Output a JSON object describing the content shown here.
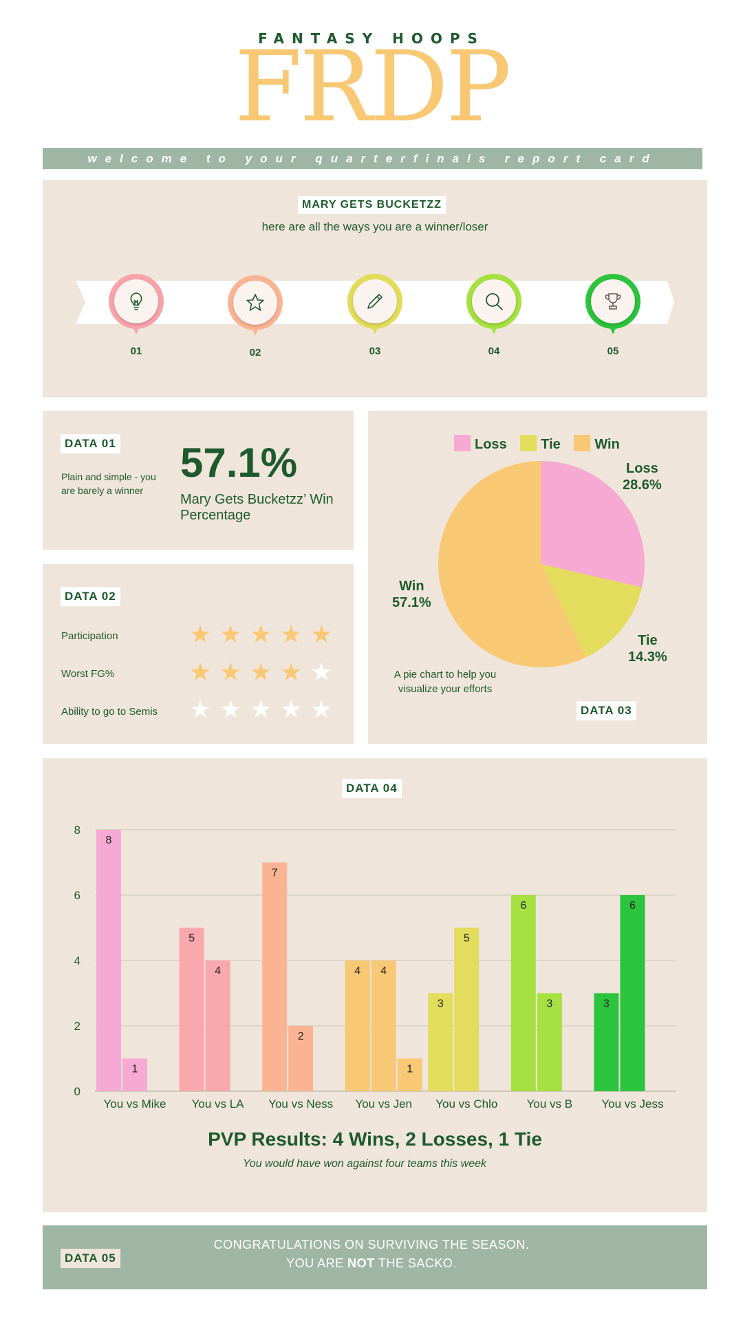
{
  "header": {
    "subtitle": "FANTASY HOOPS",
    "logo": "FRDP",
    "welcome": "welcome to your quarterfinals report card"
  },
  "intro": {
    "team_name": "MARY GETS BUCKETZZ",
    "subtitle": "here are all the ways you are a winner/loser",
    "steps": [
      {
        "num": "01",
        "icon": "lightbulb-icon",
        "color": "#f7a3a9"
      },
      {
        "num": "02",
        "icon": "star-icon",
        "color": "#fbb493"
      },
      {
        "num": "03",
        "icon": "pencil-icon",
        "color": "#e2dc5a"
      },
      {
        "num": "04",
        "icon": "search-icon",
        "color": "#a6e141"
      },
      {
        "num": "05",
        "icon": "trophy-icon",
        "color": "#2cc33d"
      }
    ]
  },
  "data01": {
    "tag": "DATA 01",
    "description": "Plain and simple - you are barely a winner",
    "value": "57.1%",
    "caption": "Mary Gets Bucketzz’ Win Percentage"
  },
  "data02": {
    "tag": "DATA 02",
    "ratings": [
      {
        "label": "Participation",
        "stars": 5,
        "max": 5
      },
      {
        "label": "Worst FG%",
        "stars": 4,
        "max": 5
      },
      {
        "label": "Ability to go to Semis",
        "stars": 0,
        "max": 5
      }
    ]
  },
  "data03": {
    "tag": "DATA 03",
    "note": "A pie chart to help you visualize your efforts"
  },
  "data04": {
    "tag": "DATA 04",
    "pvp_title": "PVP Results: 4 Wins, 2 Losses, 1 Tie",
    "pvp_subtitle": "You would have won against four teams this week"
  },
  "data05": {
    "tag": "DATA 05",
    "line1": "CONGRATULATIONS ON SURVIVING THE SEASON.",
    "line2_pre": "YOU ARE ",
    "line2_bold": "NOT",
    "line2_post": " THE SACKO."
  },
  "colors": {
    "dark_green": "#1e5a2e",
    "sage": "#a0b6a4",
    "beige": "#efe5da",
    "gold": "#f9c874"
  },
  "chart_data": [
    {
      "type": "pie",
      "legend": [
        "Loss",
        "Tie",
        "Win"
      ],
      "legend_position": "top",
      "slices": [
        {
          "label": "Loss",
          "value": 28.6,
          "display": "28.6%",
          "color": "#f6a9d2"
        },
        {
          "label": "Tie",
          "value": 14.3,
          "display": "14.3%",
          "color": "#e3dc5c"
        },
        {
          "label": "Win",
          "value": 57.1,
          "display": "57.1%",
          "color": "#f9c874"
        }
      ]
    },
    {
      "type": "bar",
      "categories": [
        "You vs Mike",
        "You vs LA",
        "You vs Ness",
        "You vs Jen",
        "You vs Chlo",
        "You vs B",
        "You vs Jess"
      ],
      "ylim": [
        0,
        8
      ],
      "yticks": [
        0,
        2,
        4,
        6,
        8
      ],
      "grid": true,
      "groups": [
        {
          "bars": [
            8,
            1
          ],
          "color": "#f6a9d2"
        },
        {
          "bars": [
            5,
            4
          ],
          "color": "#f9a8ad"
        },
        {
          "bars": [
            7,
            2
          ],
          "color": "#fbb493"
        },
        {
          "bars": [
            4,
            4,
            1
          ],
          "color": "#f9c874"
        },
        {
          "bars": [
            3,
            5
          ],
          "color": "#e3dc5c"
        },
        {
          "bars": [
            6,
            3
          ],
          "color": "#a6e141"
        },
        {
          "bars": [
            3,
            6
          ],
          "color": "#2cc33d"
        }
      ]
    }
  ]
}
